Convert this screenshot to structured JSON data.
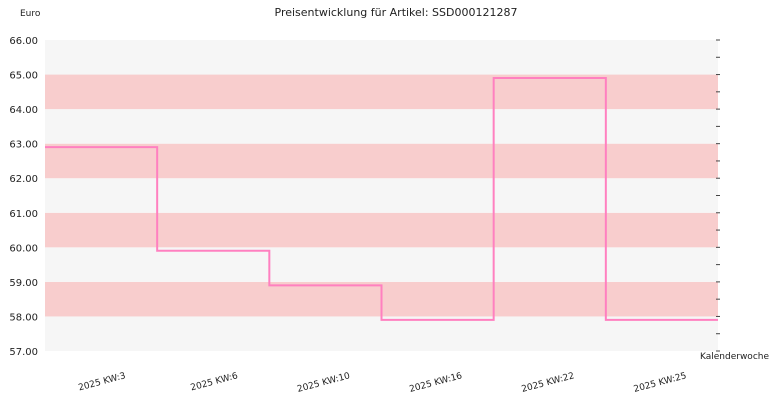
{
  "chart_data": {
    "type": "line",
    "title": "Preisentwicklung für Artikel: SSD000121287",
    "ylabel": "Euro",
    "xlabel": "Kalenderwoche",
    "ylim": [
      57.0,
      66.0
    ],
    "y_ticks": [
      "57.00",
      "58.00",
      "59.00",
      "60.00",
      "61.00",
      "62.00",
      "63.00",
      "64.00",
      "65.00",
      "66.00"
    ],
    "categories": [
      "2025 KW:3",
      "2025 KW:6",
      "2025 KW:10",
      "2025 KW:16",
      "2025 KW:22",
      "2025 KW:25"
    ],
    "series": [
      {
        "values": [
          62.9,
          59.9,
          58.9,
          57.9,
          64.9,
          57.9
        ],
        "color": "#ff80c0",
        "step": true
      }
    ],
    "band_colors": [
      "#f6f6f6",
      "#f8cdcd"
    ],
    "grid": false
  }
}
